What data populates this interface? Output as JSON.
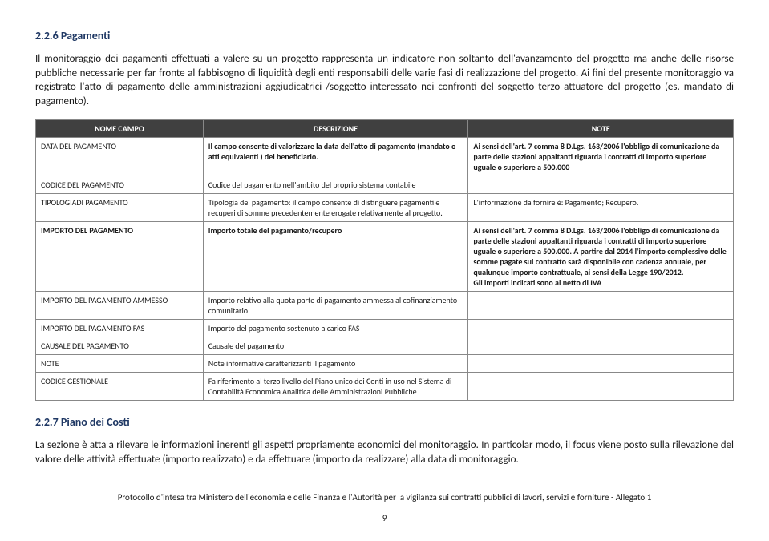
{
  "section1": {
    "title": "2.2.6   Pagamenti",
    "para": "Il monitoraggio dei pagamenti effettuati a valere su un progetto  rappresenta un indicatore non soltanto dell'avanzamento del progetto ma anche delle risorse pubbliche necessarie per far fronte al fabbisogno di liquidità degli enti responsabili delle varie fasi di realizzazione del progetto. Ai fini del presente monitoraggio va registrato l'atto di pagamento delle amministrazioni aggiudicatrici /soggetto interessato nei confronti del soggetto terzo attuatore del progetto (es. mandato di pagamento)."
  },
  "headers": {
    "c1": "NOME CAMPO",
    "c2": "DESCRIZIONE",
    "c3": "NOTE"
  },
  "rows": [
    {
      "c1": "DATA DEL PAGAMENTO",
      "c1bold": false,
      "c2": "Il campo consente di valorizzare la data dell'atto di pagamento (mandato o atti equivalenti ) del beneficiario.",
      "c2bold": true,
      "c3": "Ai sensi dell'art. 7 comma 8 D.Lgs. 163/2006 l'obbligo di comunicazione da parte delle stazioni appaltanti riguarda i contratti di importo superiore uguale o superiore a 500.000",
      "c3bold": true
    },
    {
      "c1": "CODICE DEL PAGAMENTO",
      "c2": "Codice del pagamento nell'ambito del proprio sistema contabile",
      "c3": ""
    },
    {
      "c1": "TIPOLOGIADI PAGAMENTO",
      "c2": "Tipologia del pagamento: il campo consente di distinguere pagamenti e\nrecuperi di somme precedentemente erogate relativamente al progetto.",
      "c3": "L'informazione da fornire è: Pagamento; Recupero."
    },
    {
      "c1": "IMPORTO DEL PAGAMENTO",
      "c1bold": true,
      "c2": "Importo totale del pagamento/recupero",
      "c2bold": true,
      "c3": "Ai sensi dell'art. 7 comma 8 D.Lgs. 163/2006 l'obbligo di comunicazione da parte delle stazioni appaltanti riguarda i contratti di importo superiore uguale o superiore a 500.000. A partire dal 2014 l'importo complessivo delle somme pagate sul contratto sarà disponibile con cadenza annuale, per qualunque importo contrattuale, ai sensi della Legge 190/2012.\nGli importi indicati sono al netto di IVA",
      "c3bold": true
    },
    {
      "c1": "IMPORTO DEL PAGAMENTO AMMESSO",
      "c2": "Importo relativo alla quota parte di pagamento ammessa al cofinanziamento comunitario",
      "c3": ""
    },
    {
      "c1": "IMPORTO DEL PAGAMENTO FAS",
      "c2": "Importo del pagamento sostenuto a carico FAS",
      "c3": ""
    },
    {
      "c1": "CAUSALE DEL PAGAMENTO",
      "c2": "Causale del pagamento",
      "c3": ""
    },
    {
      "c1": "NOTE",
      "c2": "Note informative caratterizzanti il pagamento",
      "c3": ""
    },
    {
      "c1": "CODICE GESTIONALE",
      "c2": "Fa riferimento al terzo livello del Piano unico dei Conti in uso nel Sistema di Contabilità  Economica Analitica delle Amministrazioni Pubbliche",
      "c3": ""
    }
  ],
  "section2": {
    "title": "2.2.7   Piano dei Costi",
    "para": "La sezione è atta a rilevare le informazioni inerenti gli aspetti propriamente economici del monitoraggio. In particolar modo, il focus viene posto sulla rilevazione del valore delle attività effettuate (importo realizzato) e da effettuare (importo da realizzare) alla data di monitoraggio."
  },
  "footer": {
    "line": "Protocollo d'intesa tra Ministero dell'economia e delle Finanza e l'Autorità per la vigilanza sui contratti pubblici di lavori, servizi e forniture - Allegato 1",
    "page": "9"
  }
}
